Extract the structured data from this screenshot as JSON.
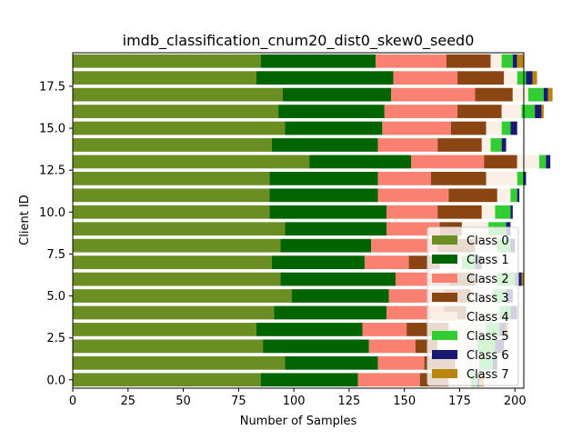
{
  "chart_data": {
    "type": "bar",
    "orientation": "horizontal",
    "stacked": true,
    "title": "imdb_classification_cnum20_dist0_skew0_seed0",
    "xlabel": "Number of Samples",
    "ylabel": "Client ID",
    "xlim": [
      0,
      204
    ],
    "ylim": [
      -0.5,
      19.5
    ],
    "xticks": [
      0,
      25,
      50,
      75,
      100,
      125,
      150,
      175,
      200
    ],
    "yticks": [
      0.0,
      2.5,
      5.0,
      7.5,
      10.0,
      12.5,
      15.0,
      17.5
    ],
    "ytick_labels": [
      "0.0",
      "2.5",
      "5.0",
      "7.5",
      "10.0",
      "12.5",
      "15.0",
      "17.5"
    ],
    "legend_position": "lower-right",
    "grid": false,
    "categories": [
      0,
      1,
      2,
      3,
      4,
      5,
      6,
      7,
      8,
      9,
      10,
      11,
      12,
      13,
      14,
      15,
      16,
      17,
      18,
      19
    ],
    "series": [
      {
        "name": "Class 0",
        "color": "#6b8e23",
        "values": [
          85,
          96,
          86,
          83,
          91,
          99,
          94,
          90,
          94,
          96,
          89,
          89,
          89,
          107,
          90,
          96,
          93,
          95,
          83,
          85
        ]
      },
      {
        "name": "Class 1",
        "color": "#006400",
        "values": [
          44,
          42,
          48,
          48,
          51,
          44,
          52,
          42,
          41,
          46,
          53,
          49,
          49,
          46,
          48,
          44,
          48,
          49,
          62,
          52
        ]
      },
      {
        "name": "Class 2",
        "color": "#fa8072",
        "values": [
          28,
          21,
          21,
          20,
          26,
          25,
          24,
          20,
          30,
          24,
          23,
          32,
          24,
          33,
          27,
          31,
          33,
          38,
          29,
          32
        ]
      },
      {
        "name": "Class 3",
        "color": "#8b4513",
        "values": [
          13,
          14,
          10,
          19,
          10,
          12,
          12,
          14,
          17,
          10,
          20,
          22,
          25,
          15,
          20,
          16,
          20,
          17,
          21,
          20
        ]
      },
      {
        "name": "Class 4",
        "color": "#faf0e6",
        "values": [
          10,
          11,
          18,
          17,
          15,
          10,
          10,
          10,
          10,
          12,
          6,
          6,
          14,
          10,
          4,
          7,
          9,
          7,
          6,
          5
        ]
      },
      {
        "name": "Class 5",
        "color": "#32cd32",
        "values": [
          3,
          6,
          8,
          6,
          5,
          6,
          8,
          6,
          6,
          8,
          7,
          3,
          3,
          3,
          5,
          4,
          6,
          7,
          4,
          5
        ]
      },
      {
        "name": "Class 6",
        "color": "#191970",
        "values": [
          1,
          2,
          4,
          3,
          3,
          3,
          3,
          3,
          2,
          2,
          1,
          1,
          1,
          2,
          2,
          3,
          3,
          2,
          3,
          2
        ]
      },
      {
        "name": "Class 7",
        "color": "#b8860b",
        "values": [
          2,
          0,
          0,
          1,
          0,
          0,
          1,
          0,
          0,
          0,
          0,
          0,
          0,
          0,
          0,
          0,
          1,
          2,
          2,
          3
        ]
      }
    ]
  }
}
